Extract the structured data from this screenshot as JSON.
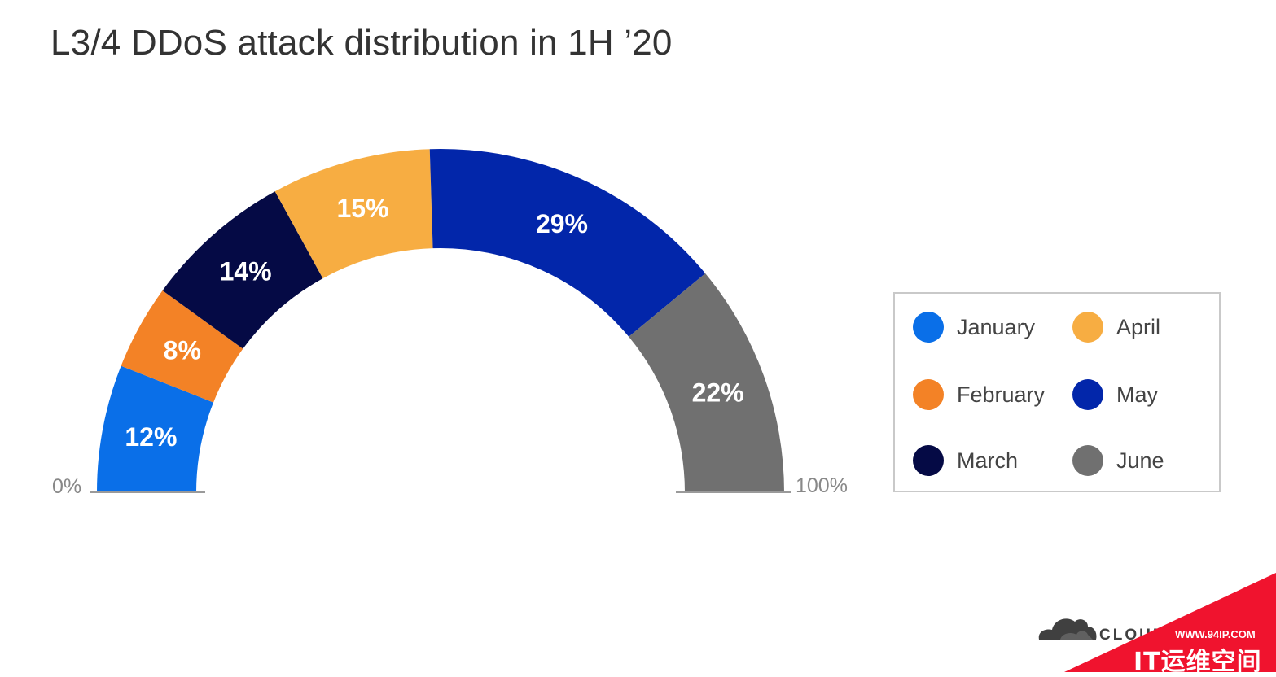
{
  "title": "L3/4 DDoS attack distribution in 1H ’20",
  "chart_data": {
    "type": "pie",
    "subtype": "half-donut",
    "title": "L3/4 DDoS attack distribution in 1H ’20",
    "categories": [
      "January",
      "February",
      "March",
      "April",
      "May",
      "June"
    ],
    "values": [
      12,
      8,
      14,
      15,
      29,
      22
    ],
    "value_labels": [
      "12%",
      "8%",
      "14%",
      "15%",
      "29%",
      "22%"
    ],
    "colors": [
      "#0a6fe8",
      "#f38226",
      "#050a45",
      "#f7ad42",
      "#0226aa",
      "#707070"
    ],
    "range_labels": {
      "start": "0%",
      "end": "100%"
    },
    "legend_position": "right"
  },
  "legend": [
    {
      "label": "January",
      "color": "#0a6fe8"
    },
    {
      "label": "April",
      "color": "#f7ad42"
    },
    {
      "label": "February",
      "color": "#f38226"
    },
    {
      "label": "May",
      "color": "#0226aa"
    },
    {
      "label": "March",
      "color": "#050a45"
    },
    {
      "label": "June",
      "color": "#707070"
    }
  ],
  "brand": {
    "name": "CLOUDFLARE",
    "visible_text": "CLOUD"
  },
  "watermark": {
    "url": "WWW.94IP.COM",
    "text": "IT运维空间",
    "color": "#f0132e"
  }
}
